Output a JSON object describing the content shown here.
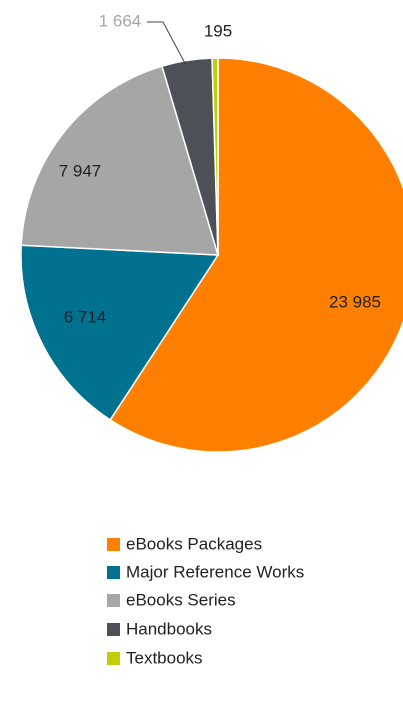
{
  "chart_data": {
    "type": "pie",
    "categories": [
      "eBooks Packages",
      "Major Reference Works",
      "eBooks Series",
      "Handbooks",
      "Textbooks"
    ],
    "values": [
      23985,
      6714,
      7947,
      1664,
      195
    ],
    "value_labels": [
      "23 985",
      "6 714",
      "7 947",
      "1 664",
      "195"
    ],
    "colors": [
      "#ff8000",
      "#00718f",
      "#a6a6a6",
      "#4d5057",
      "#c3cc0c"
    ],
    "legend": "bottom"
  }
}
